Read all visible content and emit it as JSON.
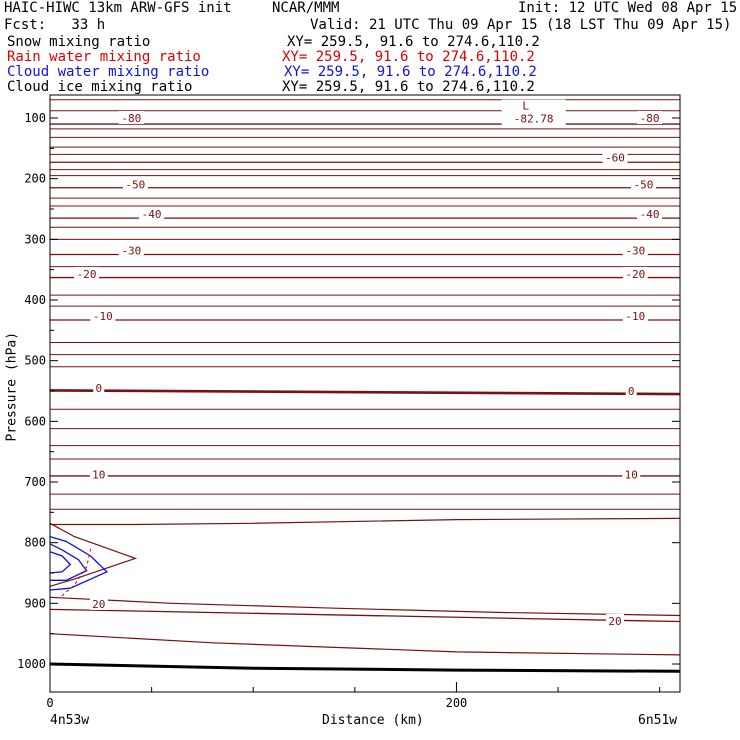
{
  "header": {
    "model": "HAIC-HIWC 13km ARW-GFS init",
    "center": "NCAR/MMM",
    "init": "Init: 12 UTC Wed 08 Apr 15",
    "fcst": "Fcst:   33 h",
    "valid": "Valid: 21 UTC Thu 09 Apr 15 (18 LST Thu 09 Apr 15)",
    "fields": [
      {
        "name": "Snow mixing ratio",
        "xy": "XY= 259.5, 91.6 to 274.6,110.2",
        "color": "#000000"
      },
      {
        "name": "Rain water mixing ratio",
        "xy": "XY= 259.5, 91.6 to 274.6,110.2",
        "color": "#e00000"
      },
      {
        "name": "Cloud water mixing ratio",
        "xy": "XY= 259.5, 91.6 to 274.6,110.2",
        "color": "#1010e0"
      },
      {
        "name": "Cloud ice mixing ratio",
        "xy": "XY= 259.5, 91.6 to 274.6,110.2",
        "color": "#000000"
      }
    ]
  },
  "chart_data": {
    "type": "line",
    "xlabel": "Distance (km)",
    "ylabel": "Pressure (hPa)",
    "xlim": [
      0,
      310
    ],
    "ylim": [
      1040,
      65
    ],
    "x_ticks": [
      0,
      200
    ],
    "y_ticks": [
      100,
      200,
      300,
      400,
      500,
      600,
      700,
      800,
      900,
      1000
    ],
    "x_end_labels": {
      "left": "4n53w",
      "right": "6n51w"
    },
    "low_marker": {
      "symbol": "L",
      "value": "-82.78",
      "x": 238,
      "p": 73
    },
    "temperature_isotherms": [
      {
        "p_left": 110,
        "p_right": 110,
        "label": "-80"
      },
      {
        "p_left": 173,
        "p_right": 173,
        "label": "-60"
      },
      {
        "p_left": 215,
        "p_right": 215,
        "label": "-50"
      },
      {
        "p_left": 265,
        "p_right": 265,
        "label": "-40"
      },
      {
        "p_left": 325,
        "p_right": 325,
        "label": "-30"
      },
      {
        "p_left": 363,
        "p_right": 363,
        "label": "-20"
      },
      {
        "p_left": 433,
        "p_right": 433,
        "label": "-10"
      },
      {
        "p_left": 549,
        "p_right": 555,
        "label": "0"
      },
      {
        "p_left": 690,
        "p_right": 690,
        "label": "10"
      },
      {
        "p_left": 910,
        "p_right": 930,
        "label": "20"
      }
    ],
    "contour_labels": [
      {
        "text": "-80",
        "x": 40,
        "p": 100
      },
      {
        "text": "-80",
        "x": 295,
        "p": 100
      },
      {
        "text": "-60",
        "x": 278,
        "p": 165
      },
      {
        "text": "-50",
        "x": 42,
        "p": 210
      },
      {
        "text": "-50",
        "x": 292,
        "p": 210
      },
      {
        "text": "-40",
        "x": 50,
        "p": 258
      },
      {
        "text": "-40",
        "x": 295,
        "p": 258
      },
      {
        "text": "-30",
        "x": 40,
        "p": 318
      },
      {
        "text": "-30",
        "x": 288,
        "p": 318
      },
      {
        "text": "-20",
        "x": 18,
        "p": 357
      },
      {
        "text": "-20",
        "x": 288,
        "p": 357
      },
      {
        "text": "-10",
        "x": 26,
        "p": 426
      },
      {
        "text": "-10",
        "x": 288,
        "p": 426
      },
      {
        "text": "0",
        "x": 24,
        "p": 545
      },
      {
        "text": "0",
        "x": 286,
        "p": 550
      },
      {
        "text": "10",
        "x": 24,
        "p": 688
      },
      {
        "text": "10",
        "x": 286,
        "p": 688
      },
      {
        "text": "20",
        "x": 24,
        "p": 901
      },
      {
        "text": "20",
        "x": 278,
        "p": 929
      }
    ],
    "theta_contours": [
      {
        "points": [
          [
            0,
            770
          ],
          [
            40,
            770
          ],
          [
            100,
            768
          ],
          [
            200,
            762
          ],
          [
            310,
            760
          ]
        ]
      },
      {
        "points": [
          [
            0,
            890
          ],
          [
            60,
            900
          ],
          [
            140,
            908
          ],
          [
            220,
            915
          ],
          [
            310,
            920
          ]
        ]
      },
      {
        "points": [
          [
            0,
            950
          ],
          [
            80,
            965
          ],
          [
            200,
            980
          ],
          [
            310,
            985
          ]
        ]
      }
    ],
    "ground_line": {
      "points": [
        [
          0,
          1000
        ],
        [
          100,
          1007
        ],
        [
          200,
          1010
        ],
        [
          310,
          1012
        ]
      ]
    },
    "rain_water_contour": {
      "points": [
        [
          20,
          810
        ],
        [
          18,
          840
        ],
        [
          12,
          870
        ],
        [
          5,
          890
        ]
      ]
    },
    "cloud_water_contours": [
      {
        "points": [
          [
            0,
            790
          ],
          [
            8,
            798
          ],
          [
            20,
            822
          ],
          [
            28,
            848
          ],
          [
            10,
            875
          ],
          [
            0,
            878
          ]
        ]
      },
      {
        "points": [
          [
            0,
            802
          ],
          [
            6,
            812
          ],
          [
            14,
            828
          ],
          [
            18,
            846
          ],
          [
            8,
            862
          ],
          [
            0,
            862
          ]
        ]
      },
      {
        "points": [
          [
            0,
            815
          ],
          [
            6,
            822
          ],
          [
            10,
            836
          ],
          [
            6,
            848
          ],
          [
            0,
            850
          ]
        ]
      }
    ],
    "ice_contour": {
      "points": [
        [
          0,
          768
        ],
        [
          12,
          790
        ],
        [
          42,
          826
        ],
        [
          12,
          860
        ],
        [
          0,
          872
        ]
      ]
    }
  }
}
